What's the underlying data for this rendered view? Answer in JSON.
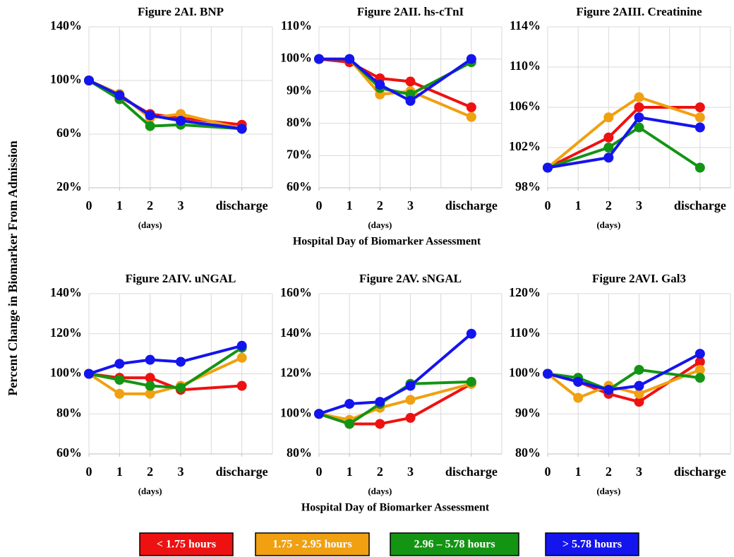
{
  "chart_data": [
    {
      "type": "line",
      "title": "Figure 2AI. BNP",
      "xlabel": "(days)",
      "x": [
        0,
        1,
        2,
        3,
        5
      ],
      "xlim": [
        0,
        6
      ],
      "xticks": [
        0,
        1,
        2,
        3,
        {
          "value": 5,
          "label": "discharge"
        }
      ],
      "ylim": [
        20,
        140
      ],
      "yticks": [
        {
          "value": 20,
          "label": "20%"
        },
        {
          "value": 60,
          "label": "60%"
        },
        {
          "value": 100,
          "label": "100%"
        },
        {
          "value": 140,
          "label": "140%"
        }
      ],
      "grid": true,
      "series": [
        {
          "values": [
            100,
            88,
            75,
            72,
            67
          ]
        },
        {
          "values": [
            100,
            90,
            72,
            75,
            64
          ]
        },
        {
          "values": [
            100,
            86,
            66,
            67,
            64
          ]
        },
        {
          "values": [
            100,
            89,
            74,
            70,
            64
          ]
        }
      ]
    },
    {
      "type": "line",
      "title": "Figure 2AII. hs-cTnI",
      "xlabel": "(days)",
      "x": [
        0,
        1,
        2,
        3,
        5
      ],
      "xlim": [
        0,
        6
      ],
      "xticks": [
        0,
        1,
        2,
        3,
        {
          "value": 5,
          "label": "discharge"
        }
      ],
      "ylim": [
        60,
        110
      ],
      "yticks": [
        {
          "value": 60,
          "label": "60%"
        },
        {
          "value": 70,
          "label": "70%"
        },
        {
          "value": 80,
          "label": "80%"
        },
        {
          "value": 90,
          "label": "90%"
        },
        {
          "value": 100,
          "label": "100%"
        },
        {
          "value": 110,
          "label": "110%"
        }
      ],
      "grid": true,
      "series": [
        {
          "values": [
            100,
            99,
            94,
            93,
            85
          ]
        },
        {
          "values": [
            100,
            100,
            89,
            90,
            82
          ]
        },
        {
          "values": [
            100,
            100,
            91,
            89,
            99
          ]
        },
        {
          "values": [
            100,
            100,
            92,
            87,
            100
          ]
        }
      ]
    },
    {
      "type": "line",
      "title": "Figure 2AIII. Creatinine",
      "xlabel": "(days)",
      "x": [
        0,
        2,
        3,
        5
      ],
      "xlim": [
        0,
        6
      ],
      "xticks": [
        0,
        1,
        2,
        3,
        {
          "value": 5,
          "label": "discharge"
        }
      ],
      "ylim": [
        98,
        114
      ],
      "yticks": [
        {
          "value": 98,
          "label": "98%"
        },
        {
          "value": 102,
          "label": "102%"
        },
        {
          "value": 106,
          "label": "106%"
        },
        {
          "value": 110,
          "label": "110%"
        },
        {
          "value": 114,
          "label": "114%"
        }
      ],
      "grid": true,
      "series": [
        {
          "values": [
            100,
            103,
            106,
            106
          ]
        },
        {
          "values": [
            100,
            105,
            107,
            105
          ]
        },
        {
          "values": [
            100,
            102,
            104,
            100
          ]
        },
        {
          "values": [
            100,
            101,
            105,
            104
          ]
        }
      ]
    },
    {
      "type": "line",
      "title": "Figure 2AIV. uNGAL",
      "xlabel": "(days)",
      "x": [
        0,
        1,
        2,
        3,
        5
      ],
      "xlim": [
        0,
        6
      ],
      "xticks": [
        0,
        1,
        2,
        3,
        {
          "value": 5,
          "label": "discharge"
        }
      ],
      "ylim": [
        60,
        140
      ],
      "yticks": [
        {
          "value": 60,
          "label": "60%"
        },
        {
          "value": 80,
          "label": "80%"
        },
        {
          "value": 100,
          "label": "100%"
        },
        {
          "value": 120,
          "label": "120%"
        },
        {
          "value": 140,
          "label": "140%"
        }
      ],
      "grid": true,
      "series": [
        {
          "values": [
            100,
            98,
            98,
            92,
            94
          ]
        },
        {
          "values": [
            100,
            90,
            90,
            94,
            108
          ]
        },
        {
          "values": [
            100,
            97,
            94,
            93,
            113
          ]
        },
        {
          "values": [
            100,
            105,
            107,
            106,
            114
          ]
        }
      ]
    },
    {
      "type": "line",
      "title": "Figure 2AV. sNGAL",
      "xlabel": "(days)",
      "x": [
        0,
        1,
        2,
        3,
        5
      ],
      "xlim": [
        0,
        6
      ],
      "xticks": [
        0,
        1,
        2,
        3,
        {
          "value": 5,
          "label": "discharge"
        }
      ],
      "ylim": [
        80,
        160
      ],
      "yticks": [
        {
          "value": 80,
          "label": "80%"
        },
        {
          "value": 100,
          "label": "100%"
        },
        {
          "value": 120,
          "label": "120%"
        },
        {
          "value": 140,
          "label": "140%"
        },
        {
          "value": 160,
          "label": "160%"
        }
      ],
      "grid": true,
      "series": [
        {
          "values": [
            100,
            95,
            95,
            98,
            115
          ]
        },
        {
          "values": [
            100,
            97,
            103,
            107,
            115
          ]
        },
        {
          "values": [
            100,
            95,
            105,
            115,
            116
          ]
        },
        {
          "values": [
            100,
            105,
            106,
            114,
            140
          ]
        }
      ]
    },
    {
      "type": "line",
      "title": "Figure 2AVI. Gal3",
      "xlabel": "(days)",
      "x": [
        0,
        1,
        2,
        3,
        5
      ],
      "xlim": [
        0,
        6
      ],
      "xticks": [
        0,
        1,
        2,
        3,
        {
          "value": 5,
          "label": "discharge"
        }
      ],
      "ylim": [
        80,
        120
      ],
      "yticks": [
        {
          "value": 80,
          "label": "80%"
        },
        {
          "value": 90,
          "label": "90%"
        },
        {
          "value": 100,
          "label": "100%"
        },
        {
          "value": 110,
          "label": "110%"
        },
        {
          "value": 120,
          "label": "120%"
        }
      ],
      "grid": true,
      "series": [
        {
          "values": [
            100,
            98,
            95,
            93,
            103
          ]
        },
        {
          "values": [
            100,
            94,
            97,
            95,
            101
          ]
        },
        {
          "values": [
            100,
            99,
            96,
            101,
            99
          ]
        },
        {
          "values": [
            100,
            98,
            96,
            97,
            105
          ]
        }
      ]
    }
  ],
  "y_axis_label": "Percent Change in Biomarker From Admission",
  "x_axis_label": "Hospital Day of Biomarker Assessment",
  "legend": [
    {
      "name": "< 1.75 hours",
      "color": "#ee1111"
    },
    {
      "name": "1.75 - 2.95 hours",
      "color": "#f0a010"
    },
    {
      "name": "2.96 – 5.78 hours",
      "color": "#139413"
    },
    {
      "name": "> 5.78 hours",
      "color": "#1414ee"
    }
  ]
}
